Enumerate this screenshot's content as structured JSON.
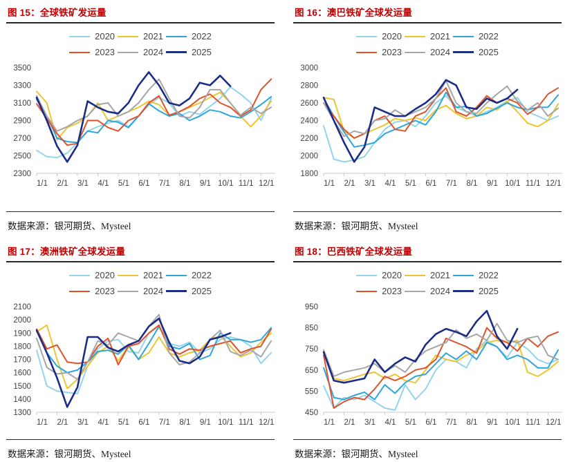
{
  "page": {
    "background": "#ffffff"
  },
  "colors": {
    "title_red": "#C00000",
    "rule_dark": "#262626",
    "axis_text": "#404040",
    "axis_line": "#C9C9C9"
  },
  "source_text": "数据来源：银河期货、Mysteel",
  "chart_data": [
    {
      "type": "line",
      "title": "图 15：全球铁矿发运量",
      "xlabel": "",
      "ylabel": "",
      "x_tick_labels": [
        "1/1",
        "2/1",
        "3/1",
        "4/1",
        "5/1",
        "6/1",
        "7/1",
        "8/1",
        "9/1",
        "10/1",
        "11/1",
        "12/1"
      ],
      "ylim": [
        2300,
        3500
      ],
      "ytick_step": 200,
      "grid": false,
      "legend_position": "top",
      "x_note": "points are semi-monthly (1/1, 1/15, 2/1, ...)",
      "series": [
        {
          "name": "2020",
          "color": "#92D4EE",
          "values": [
            2560,
            2490,
            2480,
            2530,
            2650,
            2780,
            2830,
            2870,
            2900,
            2830,
            2950,
            3080,
            3160,
            3100,
            2950,
            3000,
            2970,
            3060,
            3150,
            3280,
            3200,
            3100,
            2900,
            3150
          ]
        },
        {
          "name": "2021",
          "color": "#EDC531",
          "values": [
            3230,
            3100,
            2680,
            2820,
            2870,
            2950,
            3100,
            2900,
            2950,
            3000,
            3050,
            3120,
            3080,
            2960,
            3000,
            3050,
            3100,
            3160,
            3220,
            3100,
            2950,
            2830,
            2950,
            3120
          ]
        },
        {
          "name": "2022",
          "color": "#2BA6DC",
          "values": [
            3140,
            2950,
            2700,
            2660,
            2650,
            2780,
            2760,
            2900,
            2880,
            2820,
            2950,
            3090,
            3010,
            2950,
            2980,
            2900,
            2950,
            3020,
            3000,
            2950,
            2930,
            3000,
            3080,
            3170
          ]
        },
        {
          "name": "2023",
          "color": "#E2502A",
          "values": [
            3090,
            2920,
            2750,
            2620,
            2640,
            2900,
            2900,
            2820,
            2780,
            2900,
            2950,
            3100,
            3180,
            2960,
            3000,
            3060,
            3150,
            3200,
            3100,
            3050,
            2950,
            3020,
            3250,
            3370
          ]
        },
        {
          "name": "2024",
          "color": "#A6A6A6",
          "values": [
            3180,
            2950,
            2780,
            2830,
            2900,
            2950,
            3080,
            3100,
            2950,
            3000,
            3100,
            3250,
            3370,
            3150,
            2950,
            2930,
            3050,
            3250,
            3250,
            3100,
            2960,
            3050,
            2980,
            3050
          ]
        },
        {
          "name": "2025",
          "color": "#1B2C87",
          "values": [
            3160,
            2900,
            2610,
            2430,
            2620,
            3120,
            3050,
            3000,
            2980,
            3100,
            3300,
            3450,
            3300,
            3100,
            3070,
            3150,
            3330,
            3300,
            3410,
            3290
          ]
        }
      ]
    },
    {
      "type": "line",
      "title": "图 16：澳巴铁矿全球发运量",
      "xlabel": "",
      "ylabel": "",
      "x_tick_labels": [
        "1/1",
        "2/1",
        "3/1",
        "4/1",
        "5/1",
        "6/1",
        "7/1",
        "8/1",
        "9/1",
        "10/1",
        "11/1",
        "12/1"
      ],
      "ylim": [
        1800,
        3000
      ],
      "ytick_step": 200,
      "grid": false,
      "legend_position": "top",
      "x_note": "points are semi-monthly (1/1, 1/15, 2/1, ...)",
      "series": [
        {
          "name": "2020",
          "color": "#92D4EE",
          "values": [
            2340,
            1960,
            1930,
            1950,
            1990,
            2150,
            2300,
            2380,
            2400,
            2330,
            2450,
            2600,
            2680,
            2550,
            2500,
            2450,
            2500,
            2550,
            2620,
            2660,
            2500,
            2450,
            2400,
            2450
          ]
        },
        {
          "name": "2021",
          "color": "#EDC531",
          "values": [
            2660,
            2640,
            2280,
            2200,
            2250,
            2300,
            2350,
            2420,
            2400,
            2430,
            2400,
            2520,
            2570,
            2480,
            2420,
            2450,
            2550,
            2520,
            2620,
            2500,
            2370,
            2330,
            2400,
            2590
          ]
        },
        {
          "name": "2022",
          "color": "#2BA6DC",
          "values": [
            2650,
            2450,
            2270,
            2100,
            2120,
            2150,
            2250,
            2300,
            2350,
            2400,
            2350,
            2500,
            2720,
            2550,
            2560,
            2450,
            2480,
            2540,
            2600,
            2550,
            2520,
            2550,
            2550,
            2690
          ]
        },
        {
          "name": "2023",
          "color": "#E2502A",
          "values": [
            2600,
            2450,
            2300,
            2200,
            2250,
            2400,
            2450,
            2300,
            2280,
            2450,
            2500,
            2650,
            2770,
            2500,
            2450,
            2550,
            2680,
            2600,
            2650,
            2600,
            2470,
            2550,
            2700,
            2770
          ]
        },
        {
          "name": "2024",
          "color": "#A6A6A6",
          "values": [
            2600,
            2400,
            2220,
            2280,
            2250,
            2400,
            2420,
            2520,
            2450,
            2500,
            2550,
            2650,
            2850,
            2600,
            2500,
            2480,
            2600,
            2700,
            2790,
            2620,
            2520,
            2600,
            2450,
            2540
          ]
        },
        {
          "name": "2025",
          "color": "#1B2C87",
          "values": [
            2660,
            2400,
            2150,
            1930,
            2100,
            2550,
            2500,
            2450,
            2450,
            2530,
            2600,
            2700,
            2860,
            2800,
            2550,
            2530,
            2650,
            2600,
            2650,
            2750
          ]
        }
      ]
    },
    {
      "type": "line",
      "title": "图 17：澳洲铁矿全球发运量",
      "xlabel": "",
      "ylabel": "",
      "x_tick_labels": [
        "1/1",
        "2/1",
        "3/1",
        "4/1",
        "5/1",
        "6/1",
        "7/1",
        "8/1",
        "9/1",
        "10/1",
        "11/1",
        "12/1"
      ],
      "ylim": [
        1300,
        2100
      ],
      "ytick_step": 100,
      "grid": false,
      "legend_position": "top",
      "x_note": "points are semi-monthly (1/1, 1/15, 2/1, ...)",
      "series": [
        {
          "name": "2020",
          "color": "#92D4EE",
          "values": [
            1770,
            1500,
            1460,
            1450,
            1440,
            1650,
            1780,
            1840,
            1850,
            1760,
            1750,
            1900,
            1950,
            1820,
            1800,
            1830,
            1750,
            1780,
            1850,
            1870,
            1850,
            1800,
            1670,
            1750
          ]
        },
        {
          "name": "2021",
          "color": "#EDC531",
          "values": [
            1910,
            1960,
            1700,
            1480,
            1550,
            1650,
            1750,
            1800,
            1690,
            1800,
            1700,
            1750,
            1870,
            1750,
            1720,
            1750,
            1770,
            1850,
            1880,
            1800,
            1720,
            1750,
            1830,
            1900
          ]
        },
        {
          "name": "2022",
          "color": "#2BA6DC",
          "values": [
            1920,
            1750,
            1650,
            1600,
            1620,
            1680,
            1760,
            1770,
            1740,
            1810,
            1700,
            1820,
            1950,
            1800,
            1780,
            1820,
            1700,
            1730,
            1900,
            1850,
            1850,
            1830,
            1850,
            1940
          ]
        },
        {
          "name": "2023",
          "color": "#E2502A",
          "values": [
            1930,
            1780,
            1810,
            1680,
            1670,
            1680,
            1800,
            1860,
            1660,
            1800,
            1820,
            1900,
            1960,
            1780,
            1740,
            1780,
            1770,
            1800,
            1820,
            1840,
            1750,
            1780,
            1800,
            1930
          ]
        },
        {
          "name": "2024",
          "color": "#A6A6A6",
          "values": [
            1860,
            1640,
            1590,
            1600,
            1550,
            1680,
            1840,
            1810,
            1900,
            1870,
            1840,
            1950,
            2040,
            1750,
            1660,
            1680,
            1750,
            1850,
            1920,
            1760,
            1730,
            1770,
            1720,
            1840
          ]
        },
        {
          "name": "2025",
          "color": "#1B2C87",
          "values": [
            1920,
            1750,
            1560,
            1340,
            1490,
            1870,
            1870,
            1790,
            1760,
            1810,
            1840,
            1950,
            2010,
            1830,
            1690,
            1670,
            1720,
            1850,
            1870,
            1900
          ]
        }
      ]
    },
    {
      "type": "line",
      "title": "图 18：巴西铁矿全球发运量",
      "xlabel": "",
      "ylabel": "",
      "x_tick_labels": [
        "1/1",
        "2/1",
        "3/1",
        "4/1",
        "5/1",
        "6/1",
        "7/1",
        "8/1",
        "9/1",
        "10/1",
        "11/1",
        "12/1"
      ],
      "ylim": [
        450,
        950
      ],
      "ytick_step": 100,
      "grid": false,
      "legend_position": "top",
      "x_note": "points are semi-monthly (1/1, 1/15, 2/1, ...)",
      "series": [
        {
          "name": "2020",
          "color": "#92D4EE",
          "values": [
            575,
            470,
            520,
            510,
            530,
            500,
            470,
            460,
            580,
            510,
            560,
            650,
            700,
            690,
            660,
            750,
            790,
            760,
            710,
            780,
            750,
            700,
            680,
            700
          ]
        },
        {
          "name": "2021",
          "color": "#EDC531",
          "values": [
            730,
            610,
            600,
            615,
            630,
            640,
            610,
            630,
            600,
            590,
            650,
            720,
            700,
            690,
            720,
            740,
            780,
            790,
            780,
            790,
            640,
            620,
            650,
            690
          ]
        },
        {
          "name": "2022",
          "color": "#2BA6DC",
          "values": [
            660,
            520,
            510,
            530,
            545,
            510,
            580,
            540,
            590,
            620,
            630,
            680,
            730,
            700,
            740,
            700,
            780,
            760,
            700,
            720,
            700,
            660,
            660,
            745
          ]
        },
        {
          "name": "2023",
          "color": "#E2502A",
          "values": [
            720,
            470,
            500,
            520,
            510,
            560,
            620,
            600,
            620,
            650,
            660,
            700,
            800,
            780,
            760,
            730,
            850,
            800,
            780,
            740,
            800,
            760,
            810,
            830
          ]
        },
        {
          "name": "2024",
          "color": "#A6A6A6",
          "values": [
            745,
            620,
            640,
            650,
            660,
            680,
            640,
            670,
            640,
            700,
            740,
            760,
            780,
            840,
            800,
            820,
            790,
            870,
            790,
            780,
            800,
            810,
            720,
            700
          ]
        },
        {
          "name": "2025",
          "color": "#1B2C87",
          "values": [
            735,
            600,
            590,
            600,
            610,
            700,
            640,
            680,
            710,
            690,
            770,
            820,
            845,
            830,
            810,
            880,
            930,
            810,
            750,
            845
          ]
        }
      ]
    }
  ]
}
